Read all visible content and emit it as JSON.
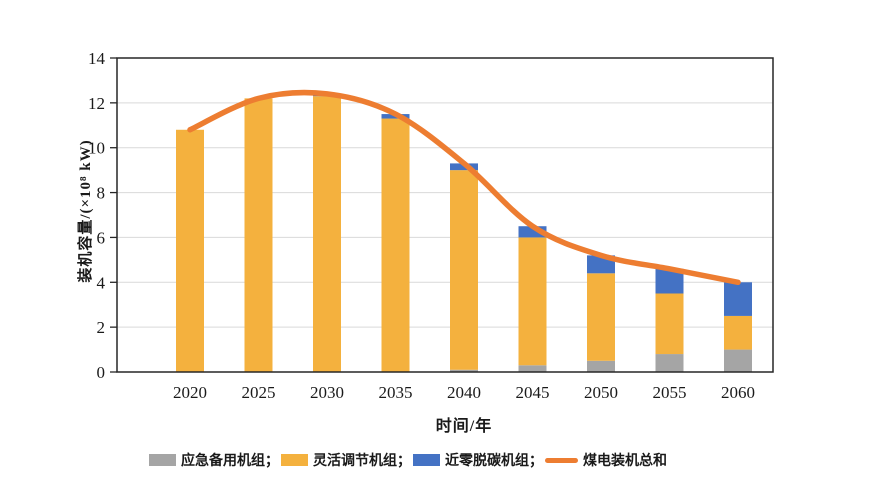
{
  "figure": {
    "background": "#ffffff",
    "axis_color": "#262626",
    "gridline_color": "#d9d9d9",
    "text_color": "#1a1a1a"
  },
  "chart_data": {
    "type": "bar",
    "stacked": true,
    "line_overlay": true,
    "title": "",
    "xlabel": "时间/年",
    "ylabel": "装机容量/(×10⁸ kW)",
    "categories": [
      "2020",
      "2025",
      "2030",
      "2035",
      "2040",
      "2045",
      "2050",
      "2055",
      "2060"
    ],
    "series": [
      {
        "name": "应急备用机组",
        "color": "#A5A5A5",
        "values": [
          0,
          0,
          0,
          0,
          0.1,
          0.3,
          0.5,
          0.8,
          1.0
        ]
      },
      {
        "name": "灵活调节机组",
        "color": "#F4B13E",
        "values": [
          10.8,
          12.2,
          12.3,
          11.3,
          8.9,
          5.7,
          3.9,
          2.7,
          1.5
        ]
      },
      {
        "name": "近零脱碳机组",
        "color": "#4472C4",
        "values": [
          0,
          0,
          0.1,
          0.2,
          0.3,
          0.5,
          0.8,
          1.1,
          1.5
        ]
      }
    ],
    "line_series": {
      "name": "煤电装机总和",
      "color": "#ED7D31",
      "smooth": true,
      "values": [
        10.8,
        12.2,
        12.4,
        11.5,
        9.3,
        6.5,
        5.2,
        4.6,
        4.0
      ]
    },
    "ylim": [
      0,
      14
    ],
    "ytick_step": 2,
    "y_ticks": [
      "0",
      "2",
      "4",
      "6",
      "8",
      "10",
      "12",
      "14"
    ],
    "grid": true,
    "legend_position": "bottom"
  },
  "legend": {
    "items": [
      {
        "label": "应急备用机组；",
        "swatch": "rect",
        "color": "#A5A5A5"
      },
      {
        "label": "灵活调节机组；",
        "swatch": "rect",
        "color": "#F4B13E"
      },
      {
        "label": "近零脱碳机组；",
        "swatch": "rect",
        "color": "#4472C4"
      },
      {
        "label": "煤电装机总和",
        "swatch": "line",
        "color": "#ED7D31"
      }
    ]
  }
}
